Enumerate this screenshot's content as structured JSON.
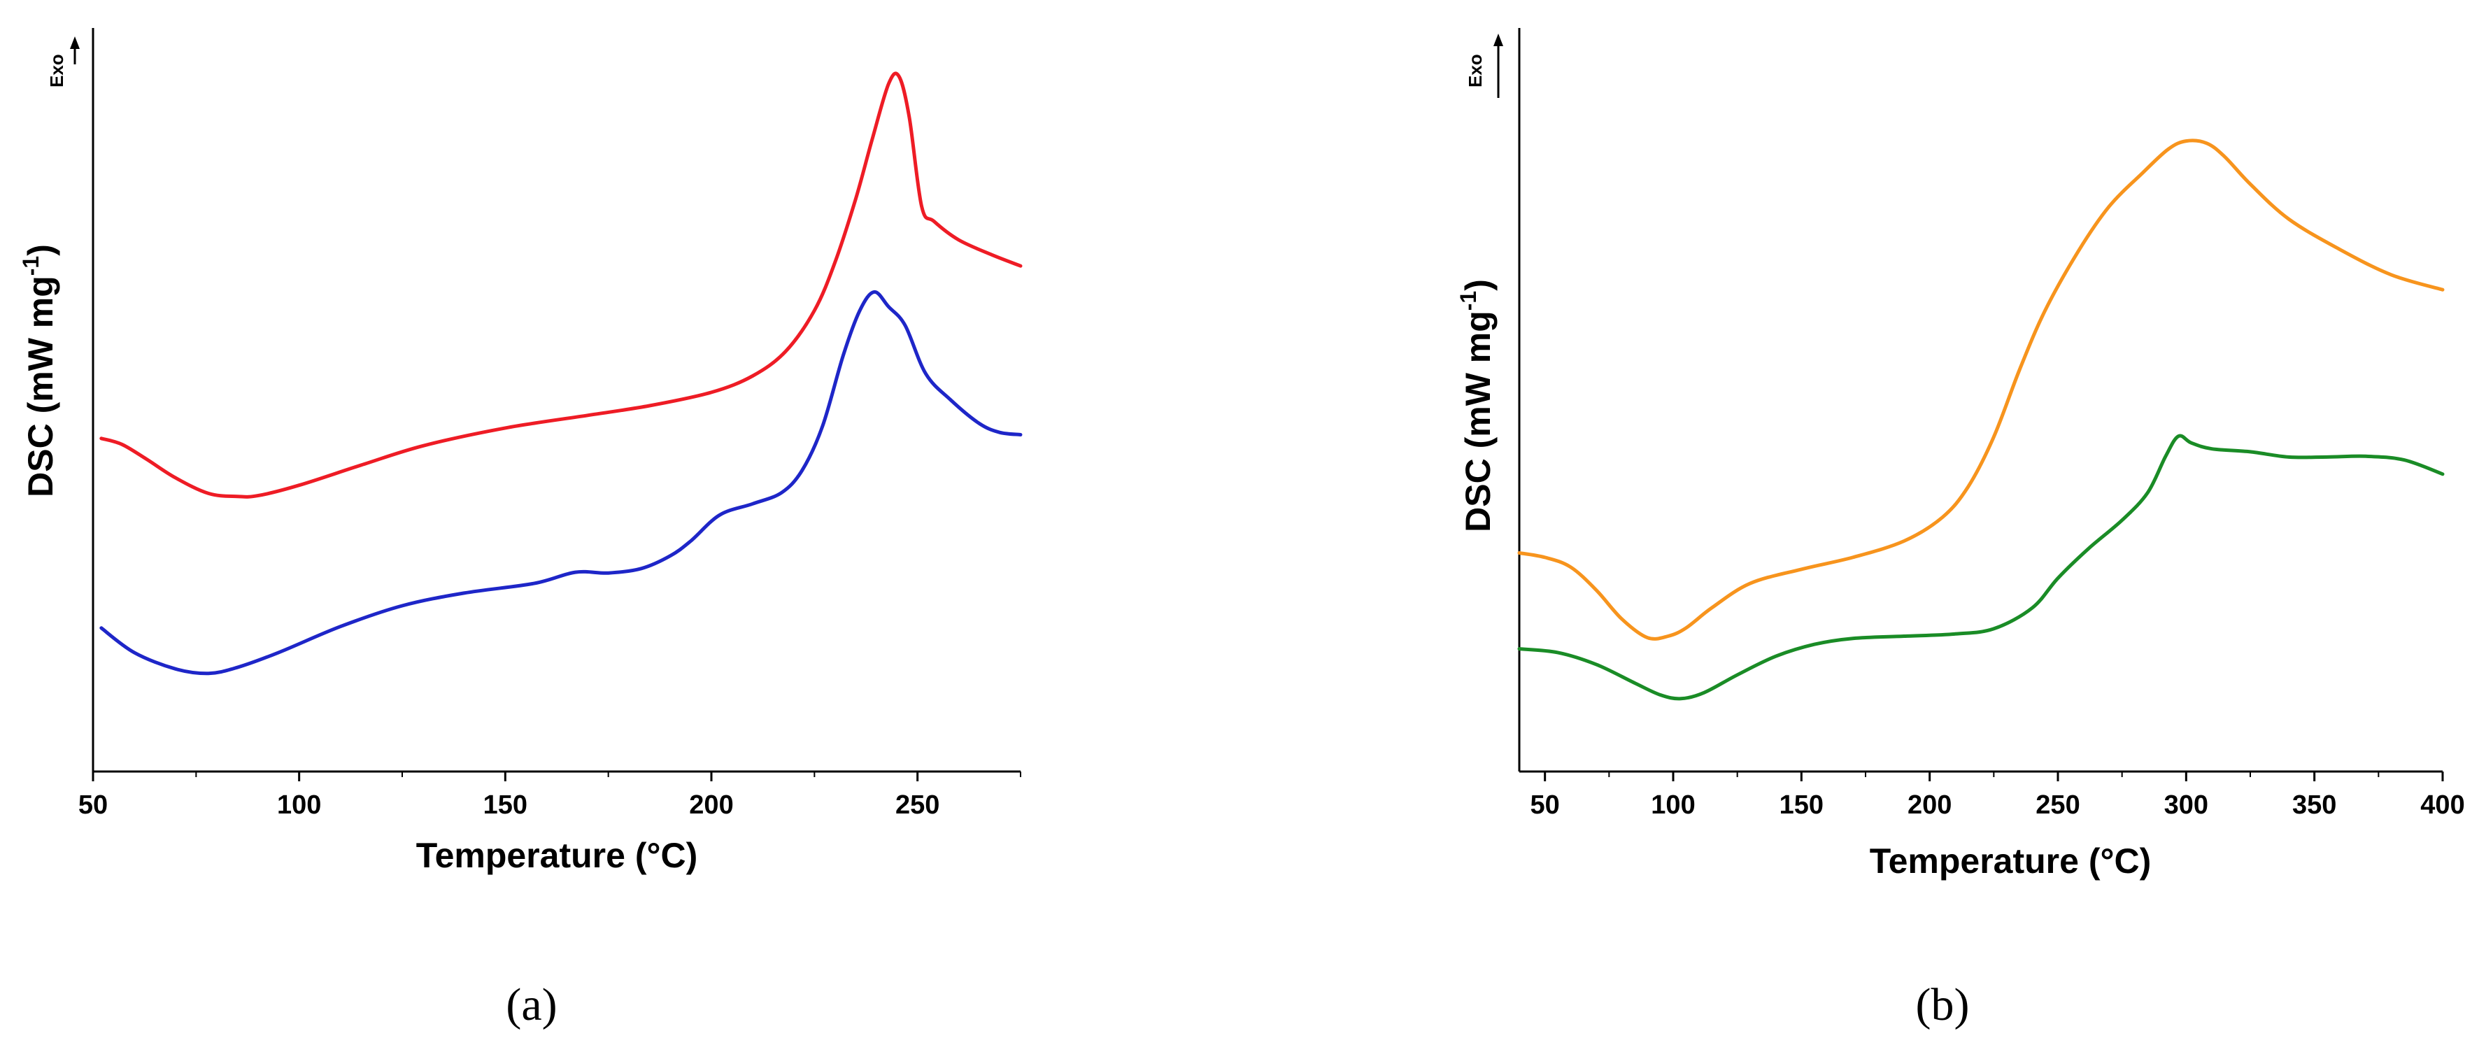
{
  "figure": {
    "panels": [
      {
        "label": "(a)",
        "exo_label": "Exo",
        "chart_index": 0
      },
      {
        "label": "(b)",
        "exo_label": "Exo",
        "chart_index": 1
      }
    ]
  },
  "chart_data": [
    {
      "type": "line",
      "title": "",
      "xlabel": "Temperature (°C)",
      "ylabel": "DSC (mW mg-1)",
      "xlim": [
        50,
        275
      ],
      "ylim": [
        0,
        100
      ],
      "xticks": [
        50,
        100,
        150,
        200,
        250
      ],
      "xminor": [
        75,
        125,
        175,
        225,
        275
      ],
      "yticks_shown": false,
      "grid": false,
      "series": [
        {
          "name": "red curve",
          "color": "#ee1c25",
          "x": [
            52,
            57,
            63,
            70,
            78,
            85,
            90,
            100,
            115,
            130,
            150,
            170,
            185,
            200,
            210,
            218,
            225,
            230,
            235,
            239,
            243,
            245.5,
            248,
            251,
            254,
            260,
            268,
            275
          ],
          "y": [
            44.8,
            44.0,
            42.0,
            39.5,
            37.4,
            37.0,
            37.1,
            38.5,
            41.2,
            43.8,
            46.2,
            47.9,
            49.2,
            51.0,
            53.2,
            56.5,
            62.0,
            68.5,
            77.0,
            85.0,
            92.5,
            93.5,
            88.0,
            76.0,
            74.0,
            71.5,
            69.5,
            68.0
          ]
        },
        {
          "name": "blue curve",
          "color": "#1e26c8",
          "x": [
            52,
            60,
            70,
            78,
            85,
            95,
            110,
            125,
            140,
            157,
            167,
            175,
            183,
            190,
            195,
            202,
            210,
            217,
            222,
            227,
            232,
            236,
            239.5,
            243,
            247,
            252,
            258,
            265,
            270,
            275
          ],
          "y": [
            19.3,
            16.0,
            13.8,
            13.2,
            14.0,
            16.0,
            19.5,
            22.3,
            24.0,
            25.3,
            26.8,
            26.7,
            27.3,
            29.0,
            31.0,
            34.5,
            36.0,
            37.5,
            40.5,
            46.5,
            56.0,
            62.0,
            64.5,
            62.5,
            60.0,
            53.5,
            50.0,
            46.8,
            45.6,
            45.3
          ]
        }
      ]
    },
    {
      "type": "line",
      "title": "",
      "xlabel": "Temperature (°C)",
      "ylabel": "DSC (mW mg-1)",
      "xlim": [
        40,
        400
      ],
      "ylim": [
        0,
        100
      ],
      "xticks": [
        50,
        100,
        150,
        200,
        250,
        300,
        350,
        400
      ],
      "xminor": [
        75,
        125,
        175,
        225,
        275,
        325,
        375
      ],
      "yticks_shown": false,
      "grid": false,
      "series": [
        {
          "name": "orange curve",
          "color": "#f7941d",
          "x": [
            40,
            50,
            60,
            70,
            80,
            90,
            98,
            105,
            115,
            130,
            150,
            170,
            190,
            205,
            215,
            225,
            235,
            245,
            258,
            270,
            283,
            293,
            300,
            308,
            315,
            325,
            340,
            360,
            380,
            400
          ],
          "y": [
            29.4,
            28.8,
            27.5,
            24.4,
            20.5,
            18.0,
            18.2,
            19.3,
            22.0,
            25.3,
            27.2,
            28.8,
            31.0,
            34.2,
            38.3,
            45.0,
            54.0,
            62.0,
            70.0,
            76.0,
            80.5,
            83.7,
            84.8,
            84.5,
            82.7,
            79.0,
            74.3,
            70.2,
            66.8,
            64.8
          ]
        },
        {
          "name": "green curve",
          "color": "#1a8c26",
          "x": [
            40,
            55,
            70,
            85,
            95,
            103,
            112,
            125,
            140,
            155,
            170,
            190,
            210,
            225,
            240,
            250,
            262,
            275,
            285,
            292,
            297,
            302,
            310,
            325,
            340,
            355,
            370,
            385,
            400
          ],
          "y": [
            16.5,
            16.0,
            14.4,
            11.9,
            10.3,
            9.8,
            10.6,
            13.0,
            15.5,
            17.1,
            17.9,
            18.2,
            18.5,
            19.2,
            22.0,
            26.0,
            30.0,
            33.8,
            37.5,
            42.4,
            45.1,
            44.2,
            43.4,
            43.0,
            42.3,
            42.3,
            42.4,
            41.9,
            40.0
          ]
        }
      ]
    }
  ]
}
